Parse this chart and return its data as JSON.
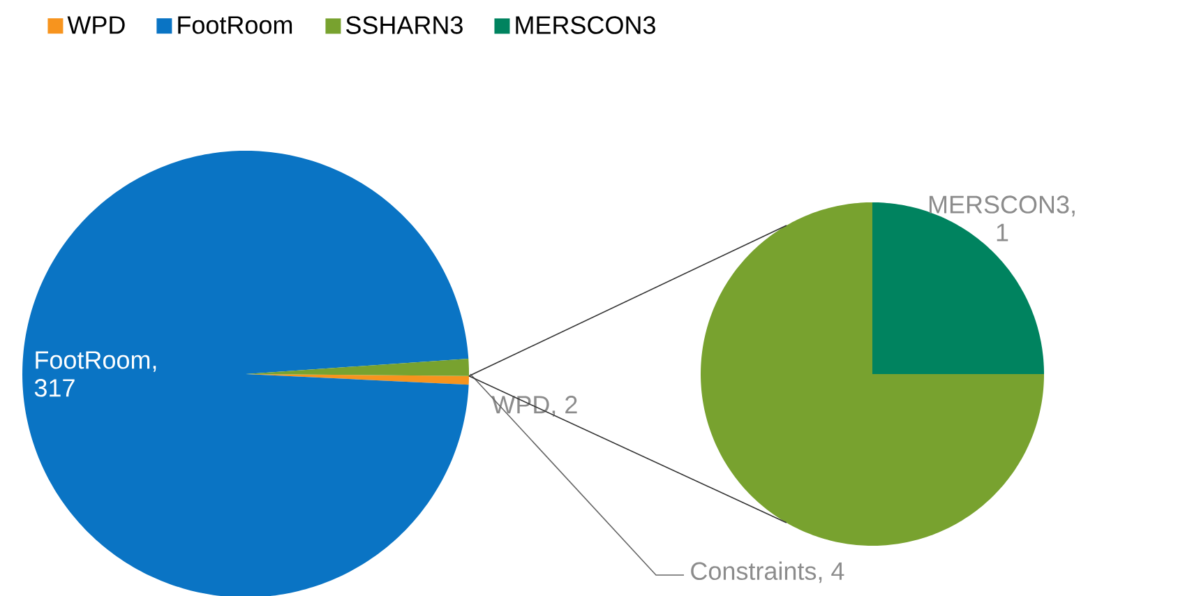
{
  "chart_data": [
    {
      "type": "pie",
      "categories": [
        "WPD",
        "FootRoom",
        null
      ],
      "values": [
        2,
        317,
        4
      ],
      "colors": [
        "#f7941e",
        "#0a74c4",
        "#78a22f"
      ],
      "value_labels": [
        "WPD, 2",
        "FootRoom, 317",
        "Constraints, 4"
      ],
      "legend": "top"
    },
    {
      "type": "pie",
      "categories": [
        "SSHARN3",
        "MERSCON3"
      ],
      "values": [
        3,
        1
      ],
      "colors": [
        "#78a22f",
        "#00835f"
      ],
      "value_labels": [
        null,
        "MERSCON3, 1"
      ],
      "legend": "top"
    }
  ]
}
